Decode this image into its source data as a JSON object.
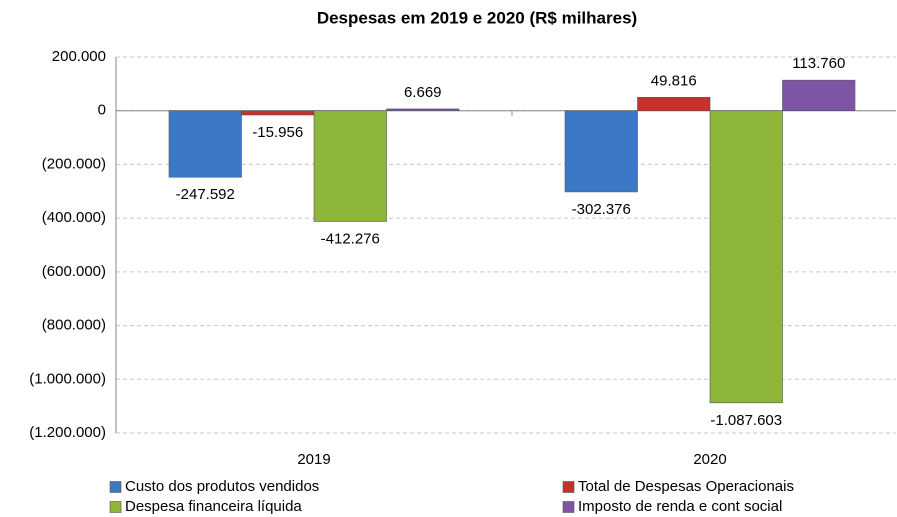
{
  "chart_data": {
    "type": "bar",
    "title": "Despesas em 2019 e 2020 (R$ milhares)",
    "categories": [
      "2019",
      "2020"
    ],
    "series": [
      {
        "name": "Custo dos produtos vendidos",
        "color": "#3b78c6",
        "values": [
          -247592,
          -302376
        ],
        "value_labels": [
          "-247.592",
          "-302.376"
        ]
      },
      {
        "name": "Total de Despesas Operacionais",
        "color": "#c7302b",
        "values": [
          -15956,
          49816
        ],
        "value_labels": [
          "-15.956",
          "49.816"
        ]
      },
      {
        "name": "Despesa financeira líquida",
        "color": "#8db63a",
        "values": [
          -412276,
          -1087603
        ],
        "value_labels": [
          "-412.276",
          "-1.087.603"
        ]
      },
      {
        "name": "Imposto de renda e cont social",
        "color": "#7e54a6",
        "values": [
          6669,
          113760
        ],
        "value_labels": [
          "6.669",
          "113.760"
        ]
      }
    ],
    "ylim": [
      -1200000,
      200000
    ],
    "yticks": [
      {
        "value": 200000,
        "label": "200.000"
      },
      0,
      {
        "value": -200000,
        "label": "(200.000)"
      },
      {
        "value": -400000,
        "label": "(400.000)"
      },
      {
        "value": -600000,
        "label": "(600.000)"
      },
      {
        "value": -800000,
        "label": "(800.000)"
      },
      {
        "value": -1000000,
        "label": "(1.000.000)"
      },
      {
        "value": -1200000,
        "label": "(1.200.000)"
      }
    ],
    "grid": true
  }
}
